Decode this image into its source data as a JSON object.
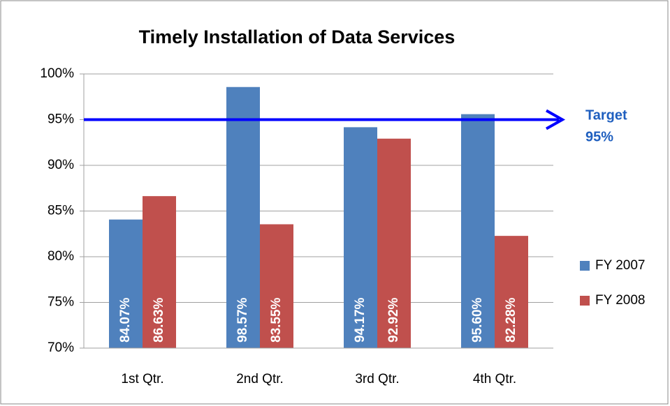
{
  "chart_data": {
    "type": "bar",
    "title": "Timely Installation of Data Services",
    "categories": [
      "1st Qtr.",
      "2nd Qtr.",
      "3rd Qtr.",
      "4th Qtr."
    ],
    "series": [
      {
        "name": "FY 2007",
        "color": "#4f81bd",
        "values": [
          84.07,
          98.57,
          94.17,
          95.6
        ],
        "value_labels": [
          "84.07%",
          "98.57%",
          "94.17%",
          "95.60%"
        ]
      },
      {
        "name": "FY 2008",
        "color": "#c0504d",
        "values": [
          86.63,
          83.55,
          92.92,
          82.28
        ],
        "value_labels": [
          "86.63%",
          "83.55%",
          "92.92%",
          "82.28%"
        ]
      }
    ],
    "ylim": [
      70,
      100
    ],
    "yticks": [
      {
        "value": 70,
        "label": "70%"
      },
      {
        "value": 75,
        "label": "75%"
      },
      {
        "value": 80,
        "label": "80%"
      },
      {
        "value": 85,
        "label": "85%"
      },
      {
        "value": 90,
        "label": "90%"
      },
      {
        "value": 95,
        "label": "95%"
      },
      {
        "value": 100,
        "label": "100%"
      }
    ],
    "grid": true,
    "legend": "right",
    "target": {
      "value": 95,
      "label": "Target",
      "value_label": "95%",
      "color": "#0000ff"
    }
  }
}
